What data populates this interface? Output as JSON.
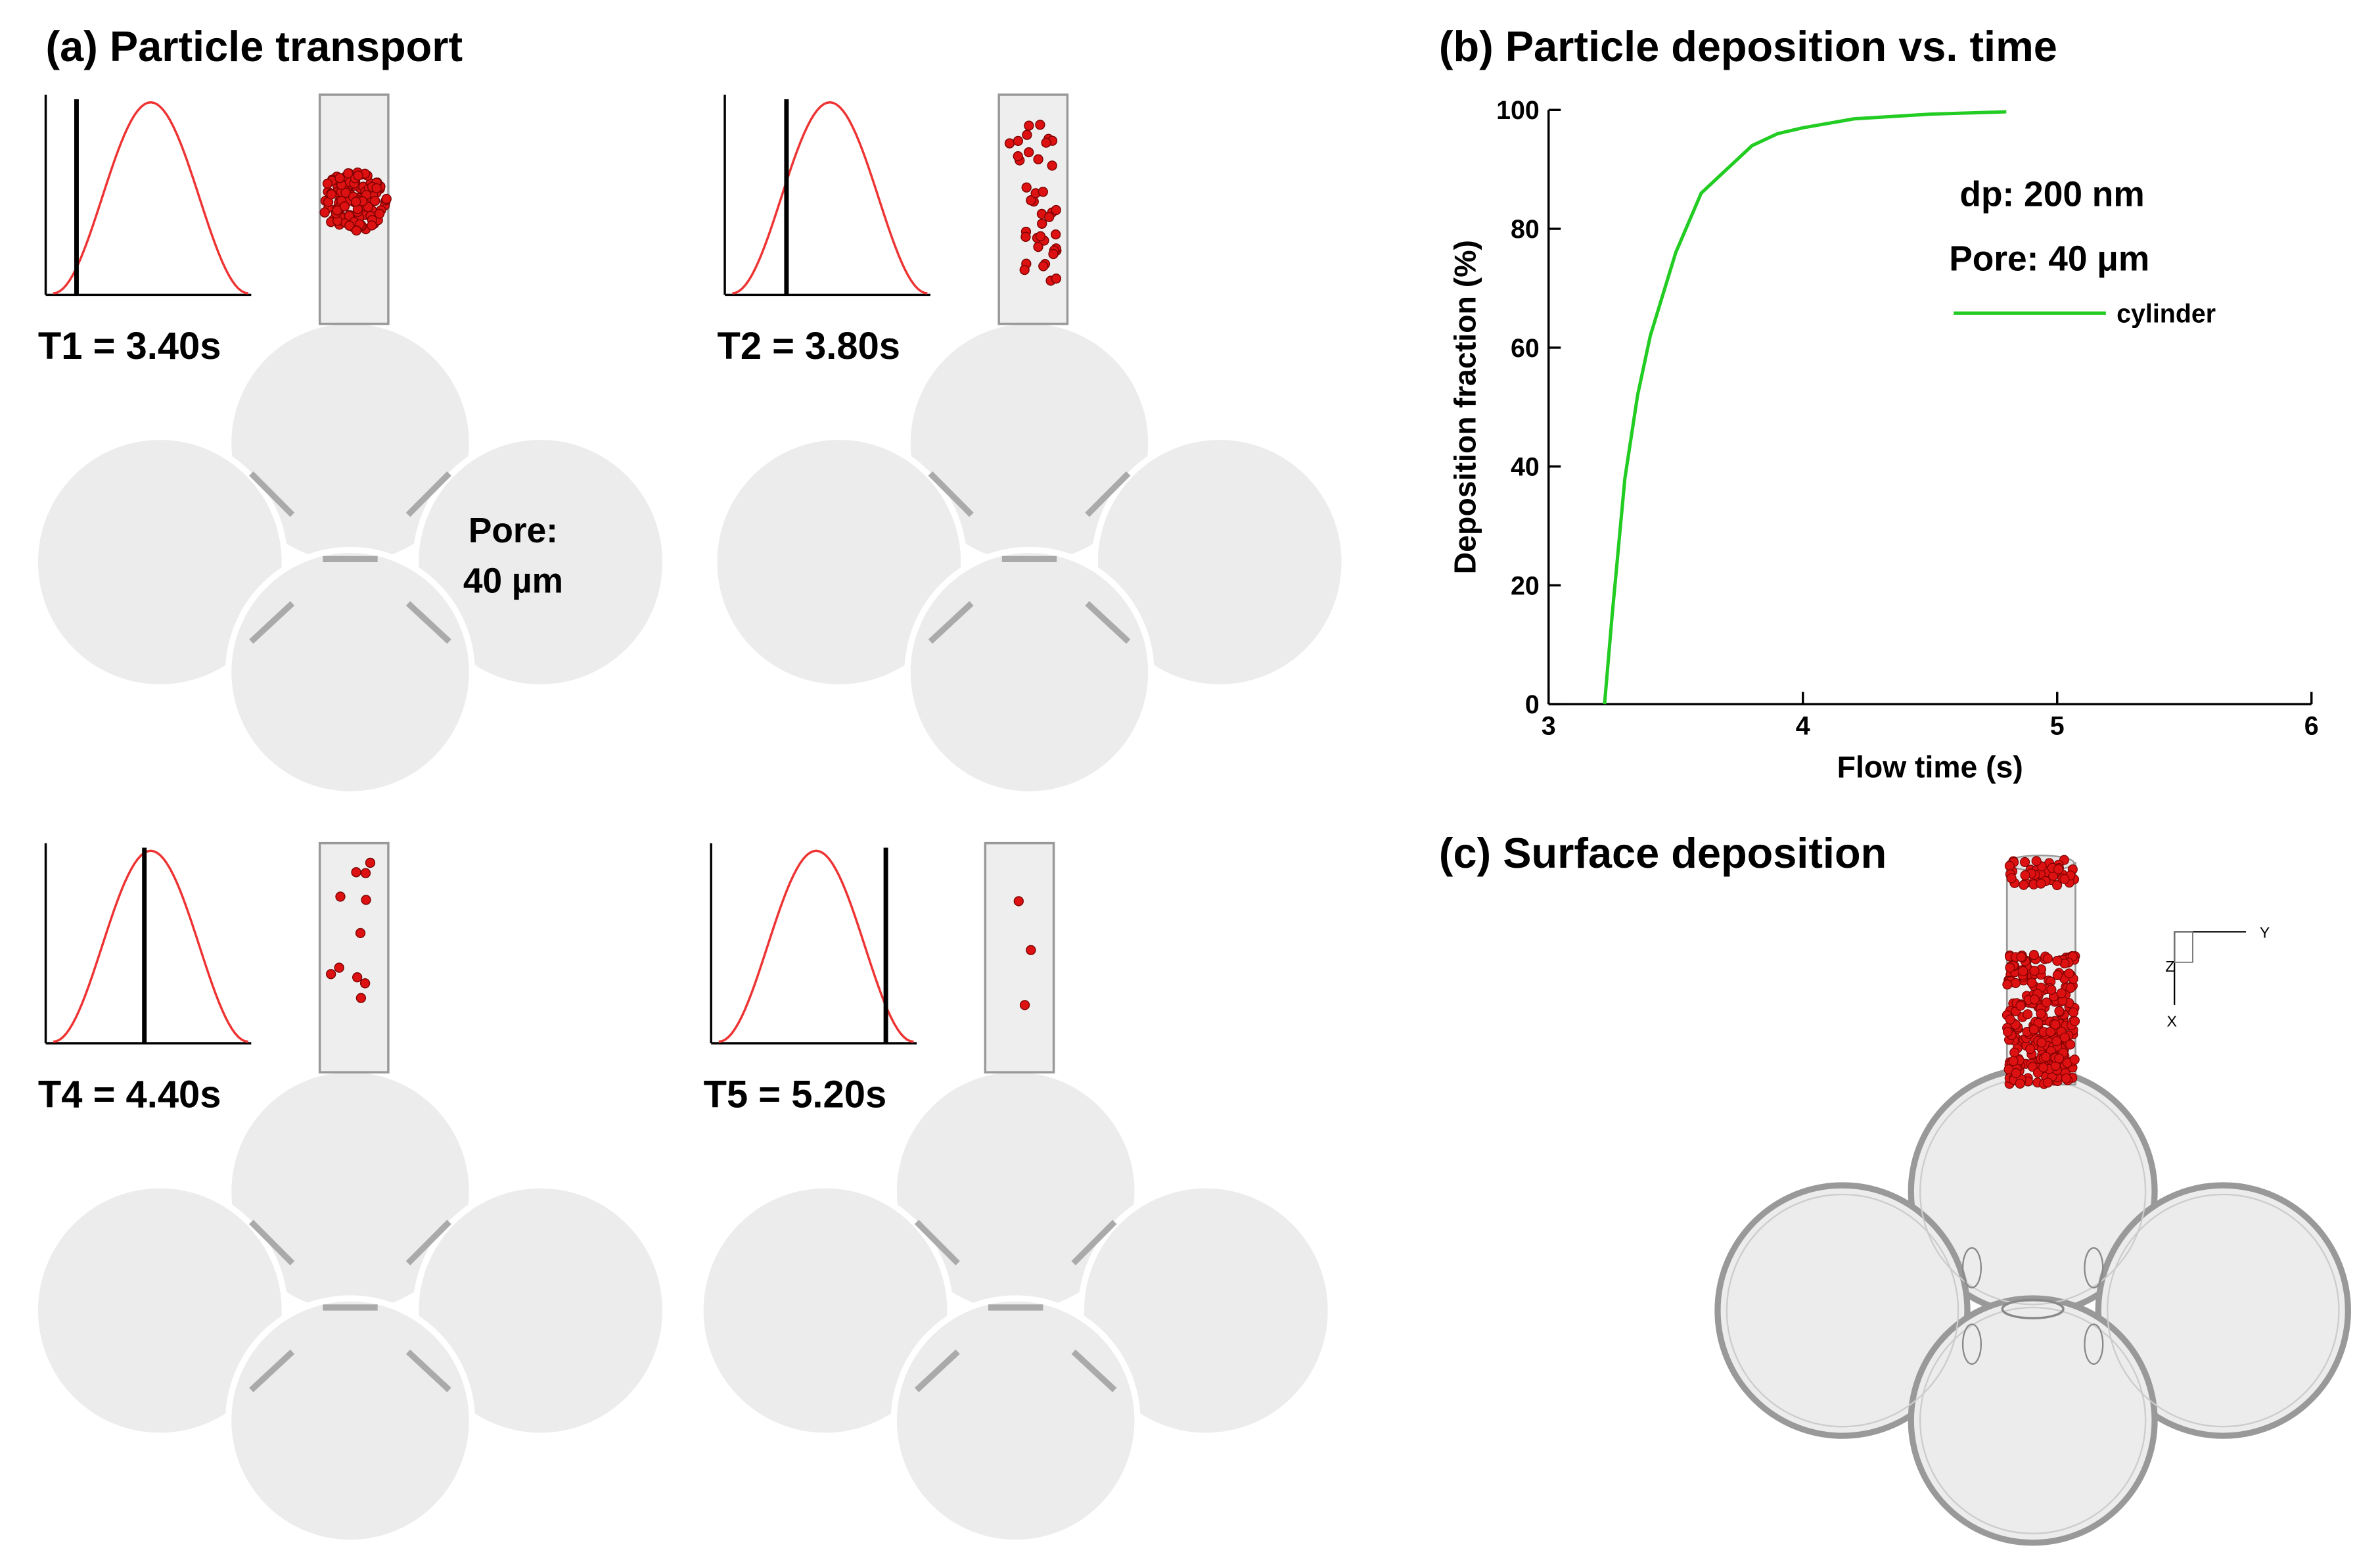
{
  "panel_a": {
    "title": "(a) Particle transport",
    "times": [
      "T1 = 3.40s",
      "T2 = 3.80s",
      "T4 = 4.40s",
      "T5 = 5.20s"
    ],
    "pore_label": [
      "Pore:",
      "40 µm"
    ]
  },
  "chart_data": {
    "type": "line",
    "title": "(b) Particle deposition vs. time",
    "x_label": "Flow time (s)",
    "y_label": "Deposition fraction (%)",
    "xlim": [
      3,
      6
    ],
    "ylim": [
      0,
      100
    ],
    "xticks": [
      3,
      4,
      5,
      6
    ],
    "yticks": [
      0,
      20,
      40,
      60,
      80,
      100
    ],
    "annotations": [
      "dp: 200 nm",
      "Pore: 40 μm"
    ],
    "series": [
      {
        "name": "cylinder",
        "color": "#22cc22",
        "x": [
          3.22,
          3.25,
          3.3,
          3.35,
          3.4,
          3.5,
          3.6,
          3.7,
          3.8,
          3.9,
          4.0,
          4.2,
          4.5,
          4.8
        ],
        "values": [
          0,
          15,
          38,
          52,
          62,
          76,
          86,
          90,
          94,
          96,
          97,
          98.5,
          99.3,
          99.7
        ]
      }
    ]
  },
  "panel_c": {
    "title": "(c) Surface deposition",
    "axis_labels": [
      "Y",
      "Z",
      "X"
    ]
  }
}
